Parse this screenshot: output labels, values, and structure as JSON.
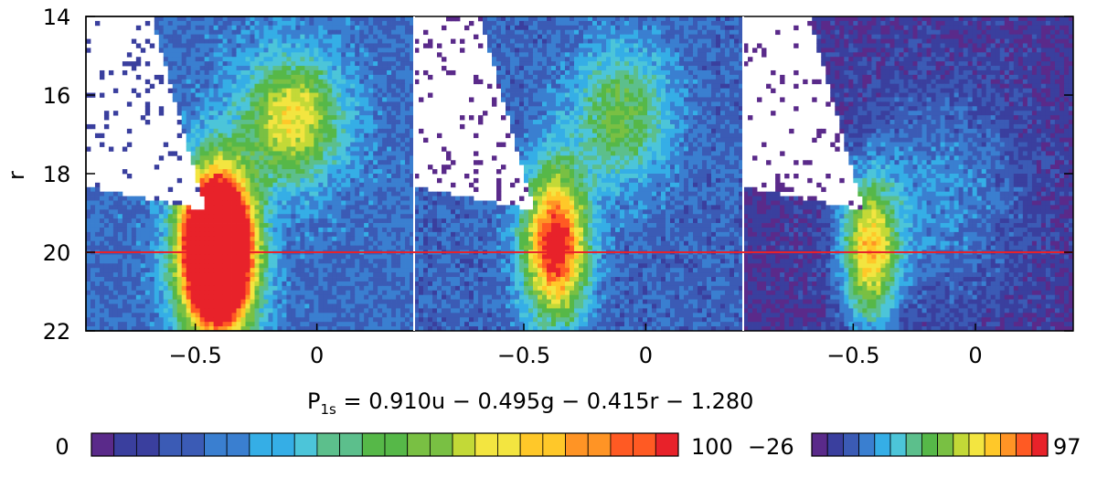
{
  "chart_data": {
    "type": "heatmap",
    "ylabel": "r",
    "xlabel_main": "P",
    "xlabel_sub": "1s",
    "xlabel_rest": " = 0.910u − 0.495g − 0.415r − 1.280",
    "xlim": [
      -0.95,
      0.4
    ],
    "ylim": [
      22,
      14
    ],
    "x_ticks": [
      -0.5,
      0
    ],
    "x_tick_labels": [
      "−0.5",
      "0"
    ],
    "y_ticks": [
      14,
      16,
      18,
      20,
      22
    ],
    "y_tick_labels": [
      "14",
      "16",
      "18",
      "20",
      "22"
    ],
    "reference_line": {
      "r": 20,
      "color": "#e8222a"
    },
    "panels": [
      {
        "name": "panel-1",
        "sequence": {
          "x0": -0.41,
          "y0": 20.0,
          "sx": 0.1,
          "sy": 1.35,
          "amp": 200
        },
        "halo": {
          "x0": -0.1,
          "y0": 16.6,
          "sx": 0.14,
          "sy": 1.1,
          "amp": 55
        },
        "background": 18
      },
      {
        "name": "panel-2",
        "sequence": {
          "x0": -0.37,
          "y0": 19.8,
          "sx": 0.09,
          "sy": 1.3,
          "amp": 92
        },
        "halo": {
          "x0": -0.1,
          "y0": 16.5,
          "sx": 0.14,
          "sy": 1.2,
          "amp": 38
        },
        "background": 16
      },
      {
        "name": "panel-3",
        "sequence": {
          "x0": -0.43,
          "y0": 20.0,
          "sx": 0.08,
          "sy": 1.25,
          "amp": 70
        },
        "halo": {
          "x0": -0.15,
          "y0": 18.6,
          "sx": 0.25,
          "sy": 2.0,
          "amp": 20
        },
        "background": 4
      }
    ],
    "colorbars": [
      {
        "name": "colorbar-left",
        "min": 0,
        "max": 100,
        "min_label": "0",
        "max_label": "100"
      },
      {
        "name": "colorbar-right",
        "min": -26,
        "max": 97,
        "min_label": "−26",
        "max_label": "97"
      }
    ],
    "palette": [
      "#5a2a8a",
      "#3a3f9e",
      "#3b5bb5",
      "#3a7fd0",
      "#35aee6",
      "#4cc5d9",
      "#5cbf8c",
      "#56b848",
      "#79c043",
      "#c3d937",
      "#f3e540",
      "#ffc829",
      "#ff9425",
      "#ff5a23",
      "#e8222a"
    ]
  }
}
